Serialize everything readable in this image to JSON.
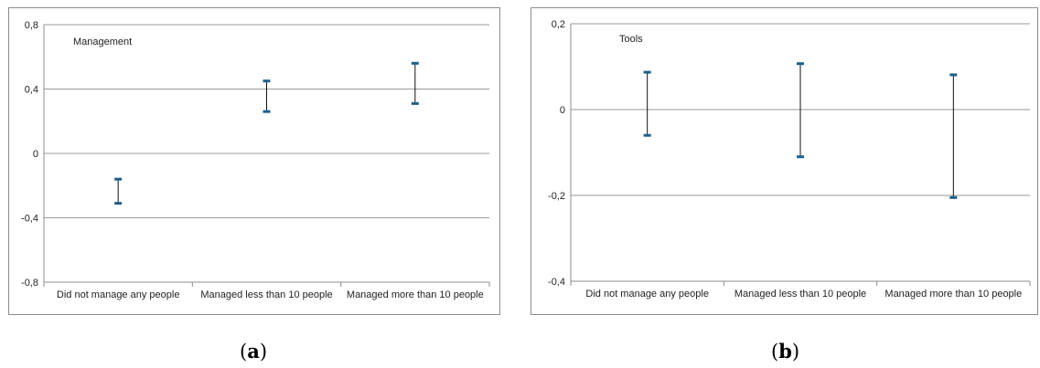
{
  "chart_data": [
    {
      "type": "error-bar",
      "title": "Management",
      "categories": [
        "Did not manage any people",
        "Managed less than 10 people",
        "Managed more than 10 people"
      ],
      "series": [
        {
          "low": [
            -0.31,
            0.26,
            0.31
          ],
          "high": [
            -0.16,
            0.45,
            0.56
          ]
        }
      ],
      "ylim": [
        -0.8,
        0.8
      ],
      "yticks": [
        -0.8,
        -0.4,
        0,
        0.4,
        0.8
      ],
      "ytick_labels": [
        "-0,8",
        "-0,4",
        "0",
        "0,4",
        "0,8"
      ],
      "grid": true,
      "xlabel": "",
      "ylabel": "",
      "color": "#1f5f8b"
    },
    {
      "type": "error-bar",
      "title": "Tools",
      "categories": [
        "Did not manage any people",
        "Managed less than 10 people",
        "Managed more than 10 people"
      ],
      "series": [
        {
          "low": [
            -0.06,
            -0.11,
            -0.205
          ],
          "high": [
            0.087,
            0.107,
            0.081
          ]
        }
      ],
      "ylim": [
        -0.4,
        0.2
      ],
      "yticks": [
        -0.4,
        -0.2,
        0,
        0.2
      ],
      "ytick_labels": [
        "-0,4",
        "-0,2",
        "0",
        "0,2"
      ],
      "grid": true,
      "xlabel": "",
      "ylabel": "",
      "color": "#1f5f8b"
    }
  ],
  "captions": [
    {
      "label": "a",
      "open": "(",
      "close": ")"
    },
    {
      "label": "b",
      "open": "(",
      "close": ")"
    }
  ]
}
